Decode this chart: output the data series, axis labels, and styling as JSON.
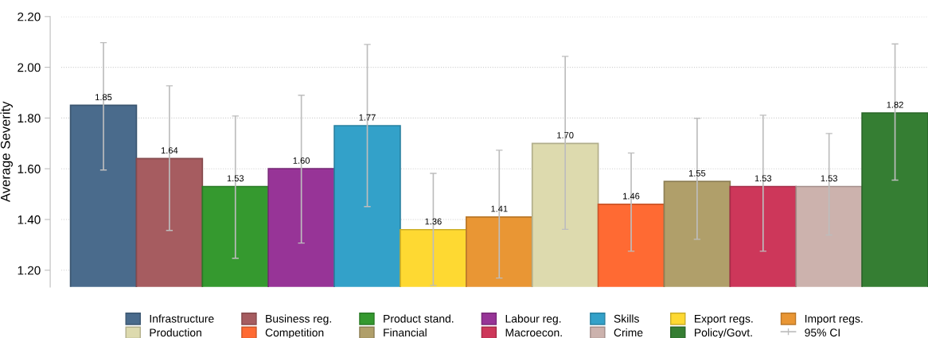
{
  "chart_data": {
    "type": "bar",
    "ylabel": "Average Severity",
    "categories": [
      null
    ],
    "series": [
      {
        "name": "Infrastructure",
        "color": "#4a6b8c",
        "values": [
          1.85
        ],
        "value_labels": [
          "1.85"
        ],
        "errors": [
          [
            1.595,
            2.097
          ]
        ]
      },
      {
        "name": "Business reg.",
        "color": "#a65c60",
        "values": [
          1.64
        ],
        "value_labels": [
          "1.64"
        ],
        "errors": [
          [
            1.357,
            1.927
          ]
        ]
      },
      {
        "name": "Product stand.",
        "color": "#35992f",
        "values": [
          1.53
        ],
        "value_labels": [
          "1.53"
        ],
        "errors": [
          [
            1.247,
            1.808
          ]
        ]
      },
      {
        "name": "Labour reg.",
        "color": "#973497",
        "values": [
          1.6
        ],
        "value_labels": [
          "1.60"
        ],
        "errors": [
          [
            1.307,
            1.89
          ]
        ]
      },
      {
        "name": "Skills",
        "color": "#33a1c9",
        "values": [
          1.77
        ],
        "value_labels": [
          "1.77"
        ],
        "errors": [
          [
            1.451,
            2.09
          ]
        ]
      },
      {
        "name": "Export regs.",
        "color": "#fed932",
        "values": [
          1.36
        ],
        "value_labels": [
          "1.36"
        ],
        "errors": [
          [
            1.14,
            1.582
          ]
        ]
      },
      {
        "name": "Import regs.",
        "color": "#e99634",
        "values": [
          1.41
        ],
        "value_labels": [
          "1.41"
        ],
        "errors": [
          [
            1.169,
            1.673
          ]
        ]
      },
      {
        "name": "Production",
        "color": "#dddaae",
        "values": [
          1.7
        ],
        "value_labels": [
          "1.70"
        ],
        "errors": [
          [
            1.361,
            2.043
          ]
        ]
      },
      {
        "name": "Competition",
        "color": "#ff6a33",
        "values": [
          1.46
        ],
        "value_labels": [
          "1.46"
        ],
        "errors": [
          [
            1.275,
            1.662
          ]
        ]
      },
      {
        "name": "Financial",
        "color": "#b09f6a",
        "values": [
          1.55
        ],
        "value_labels": [
          "1.55"
        ],
        "errors": [
          [
            1.322,
            1.799
          ]
        ]
      },
      {
        "name": "Macroecon.",
        "color": "#cd375a",
        "values": [
          1.53
        ],
        "value_labels": [
          "1.53"
        ],
        "errors": [
          [
            1.275,
            1.811
          ]
        ]
      },
      {
        "name": "Crime",
        "color": "#ccb2ad",
        "values": [
          1.53
        ],
        "value_labels": [
          "1.53"
        ],
        "errors": [
          [
            1.339,
            1.739
          ]
        ]
      },
      {
        "name": "Policy/Govt.",
        "color": "#357e33",
        "values": [
          1.82
        ],
        "value_labels": [
          "1.82"
        ],
        "errors": [
          [
            1.555,
            2.092
          ]
        ]
      }
    ],
    "annotations": [
      "95% CI"
    ],
    "ylim": [
      1.134,
      2.2
    ],
    "yticks": [
      {
        "value": 1.2,
        "label": "1.20"
      },
      {
        "value": 1.4,
        "label": "1.40"
      },
      {
        "value": 1.6,
        "label": "1.60"
      },
      {
        "value": 1.8,
        "label": "1.80"
      },
      {
        "value": 2.0,
        "label": "2.00"
      },
      {
        "value": 2.2,
        "label": "2.20"
      }
    ],
    "grid": "y",
    "legend": "bottom",
    "tick_labels": "y"
  }
}
